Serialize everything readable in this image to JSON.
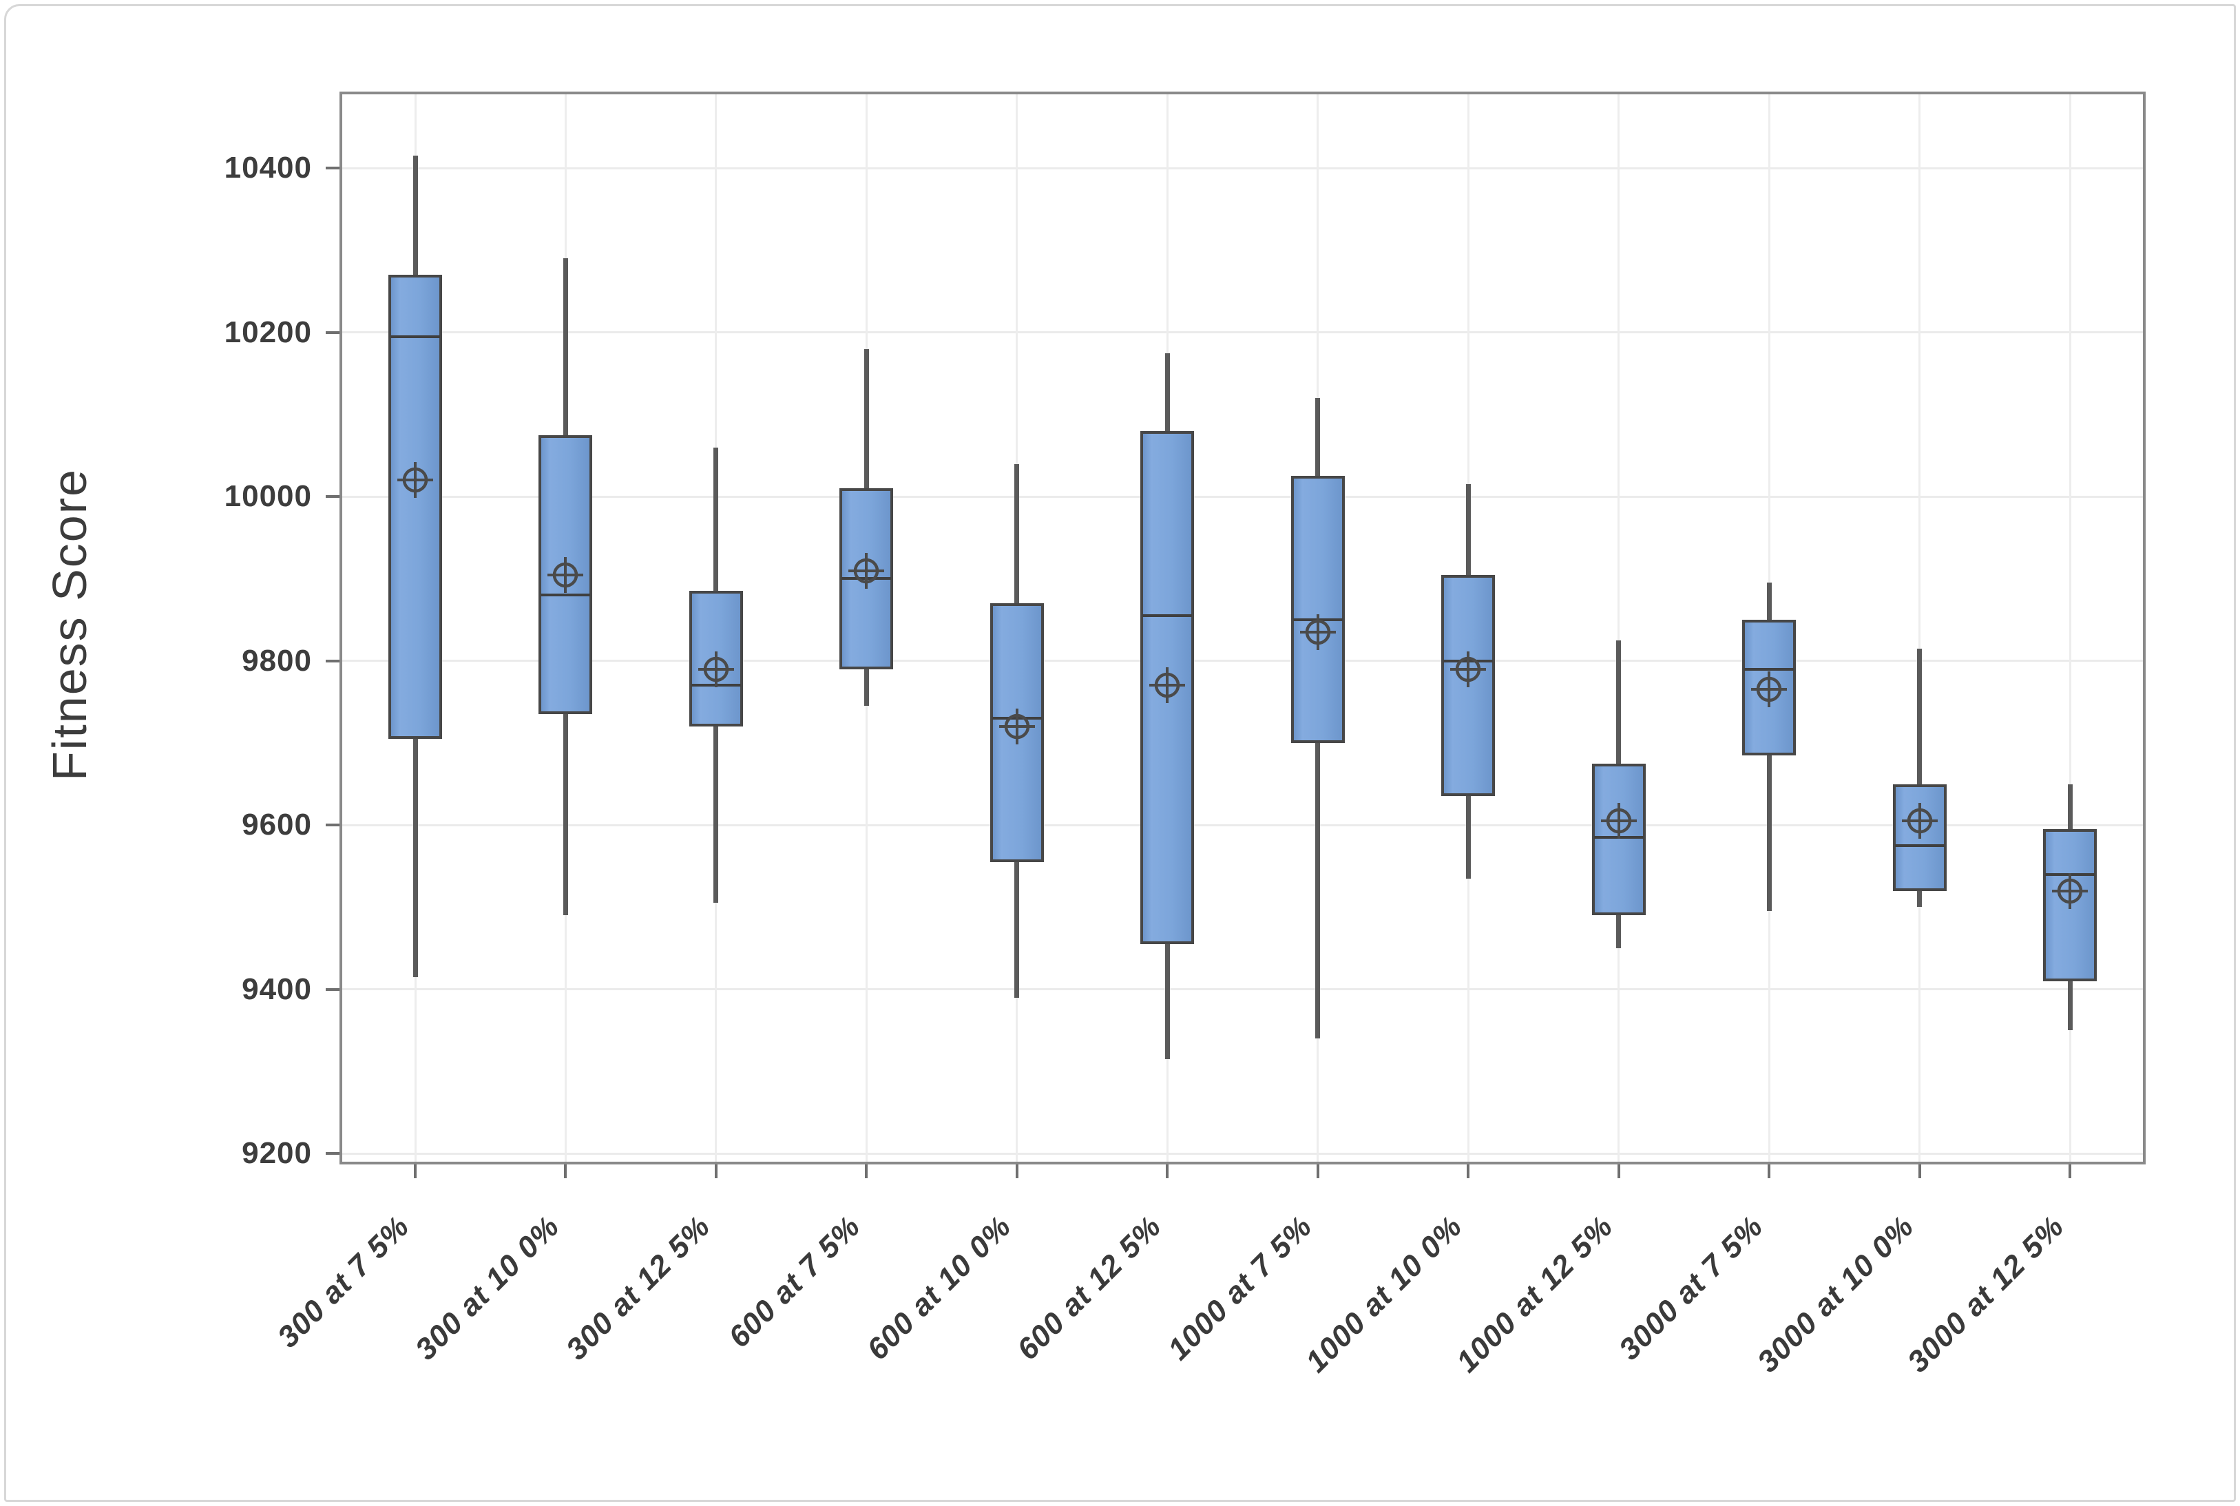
{
  "figure": {
    "y_axis_title": "Fitness Score",
    "x_axis_title": ""
  },
  "colors": {
    "box_fill": "#7CA5DA",
    "box_border": "#474747",
    "median_line": "#3F3F3F",
    "whisker": "#5A5A5A",
    "mean_symbol": "#4A4A4A",
    "gridline": "#EBEBEB",
    "frame": "#898989",
    "tick_mark": "#6F6F6F",
    "tick_label": "#3D3D3D",
    "outer_border": "#D7D7D7",
    "background": "#FFFFFF"
  },
  "chart_data": {
    "type": "boxplot",
    "title": "",
    "xlabel": "",
    "ylabel": "Fitness Score",
    "ylim": [
      9190,
      10490
    ],
    "yticks": [
      9200,
      9400,
      9600,
      9800,
      10000,
      10200,
      10400
    ],
    "grid": "horizontal gridlines at each y tick; vertical gridline at each category",
    "legend": "none",
    "mean_marker": "circled crosshair",
    "categories": [
      "300 at 7 5%",
      "300 at 10 0%",
      "300 at 12 5%",
      "600 at 7 5%",
      "600 at 10 0%",
      "600 at 12 5%",
      "1000 at 7 5%",
      "1000 at 10 0%",
      "1000 at 12 5%",
      "3000 at 7 5%",
      "3000 at 10 0%",
      "3000 at 12 5%"
    ],
    "boxes": [
      {
        "label": "300 at 7 5%",
        "whisker_low": 9415,
        "q1": 9705,
        "median": 10195,
        "q3": 10270,
        "whisker_high": 10415,
        "mean": 10020
      },
      {
        "label": "300 at 10 0%",
        "whisker_low": 9490,
        "q1": 9735,
        "median": 9880,
        "q3": 10075,
        "whisker_high": 10290,
        "mean": 9905
      },
      {
        "label": "300 at 12 5%",
        "whisker_low": 9505,
        "q1": 9720,
        "median": 9770,
        "q3": 9885,
        "whisker_high": 10060,
        "mean": 9790
      },
      {
        "label": "600 at 7 5%",
        "whisker_low": 9745,
        "q1": 9790,
        "median": 9900,
        "q3": 10010,
        "whisker_high": 10180,
        "mean": 9910
      },
      {
        "label": "600 at 10 0%",
        "whisker_low": 9390,
        "q1": 9555,
        "median": 9730,
        "q3": 9870,
        "whisker_high": 10040,
        "mean": 9720
      },
      {
        "label": "600 at 12 5%",
        "whisker_low": 9315,
        "q1": 9455,
        "median": 9855,
        "q3": 10080,
        "whisker_high": 10175,
        "mean": 9770
      },
      {
        "label": "1000 at 7 5%",
        "whisker_low": 9340,
        "q1": 9700,
        "median": 9850,
        "q3": 10025,
        "whisker_high": 10120,
        "mean": 9835
      },
      {
        "label": "1000 at 10 0%",
        "whisker_low": 9535,
        "q1": 9635,
        "median": 9800,
        "q3": 9905,
        "whisker_high": 10015,
        "mean": 9790
      },
      {
        "label": "1000 at 12 5%",
        "whisker_low": 9450,
        "q1": 9490,
        "median": 9585,
        "q3": 9675,
        "whisker_high": 9825,
        "mean": 9605
      },
      {
        "label": "3000 at 7 5%",
        "whisker_low": 9495,
        "q1": 9685,
        "median": 9790,
        "q3": 9850,
        "whisker_high": 9895,
        "mean": 9765
      },
      {
        "label": "3000 at 10 0%",
        "whisker_low": 9500,
        "q1": 9520,
        "median": 9575,
        "q3": 9650,
        "whisker_high": 9815,
        "mean": 9605
      },
      {
        "label": "3000 at 12 5%",
        "whisker_low": 9350,
        "q1": 9410,
        "median": 9540,
        "q3": 9595,
        "whisker_high": 9650,
        "mean": 9520
      }
    ]
  }
}
